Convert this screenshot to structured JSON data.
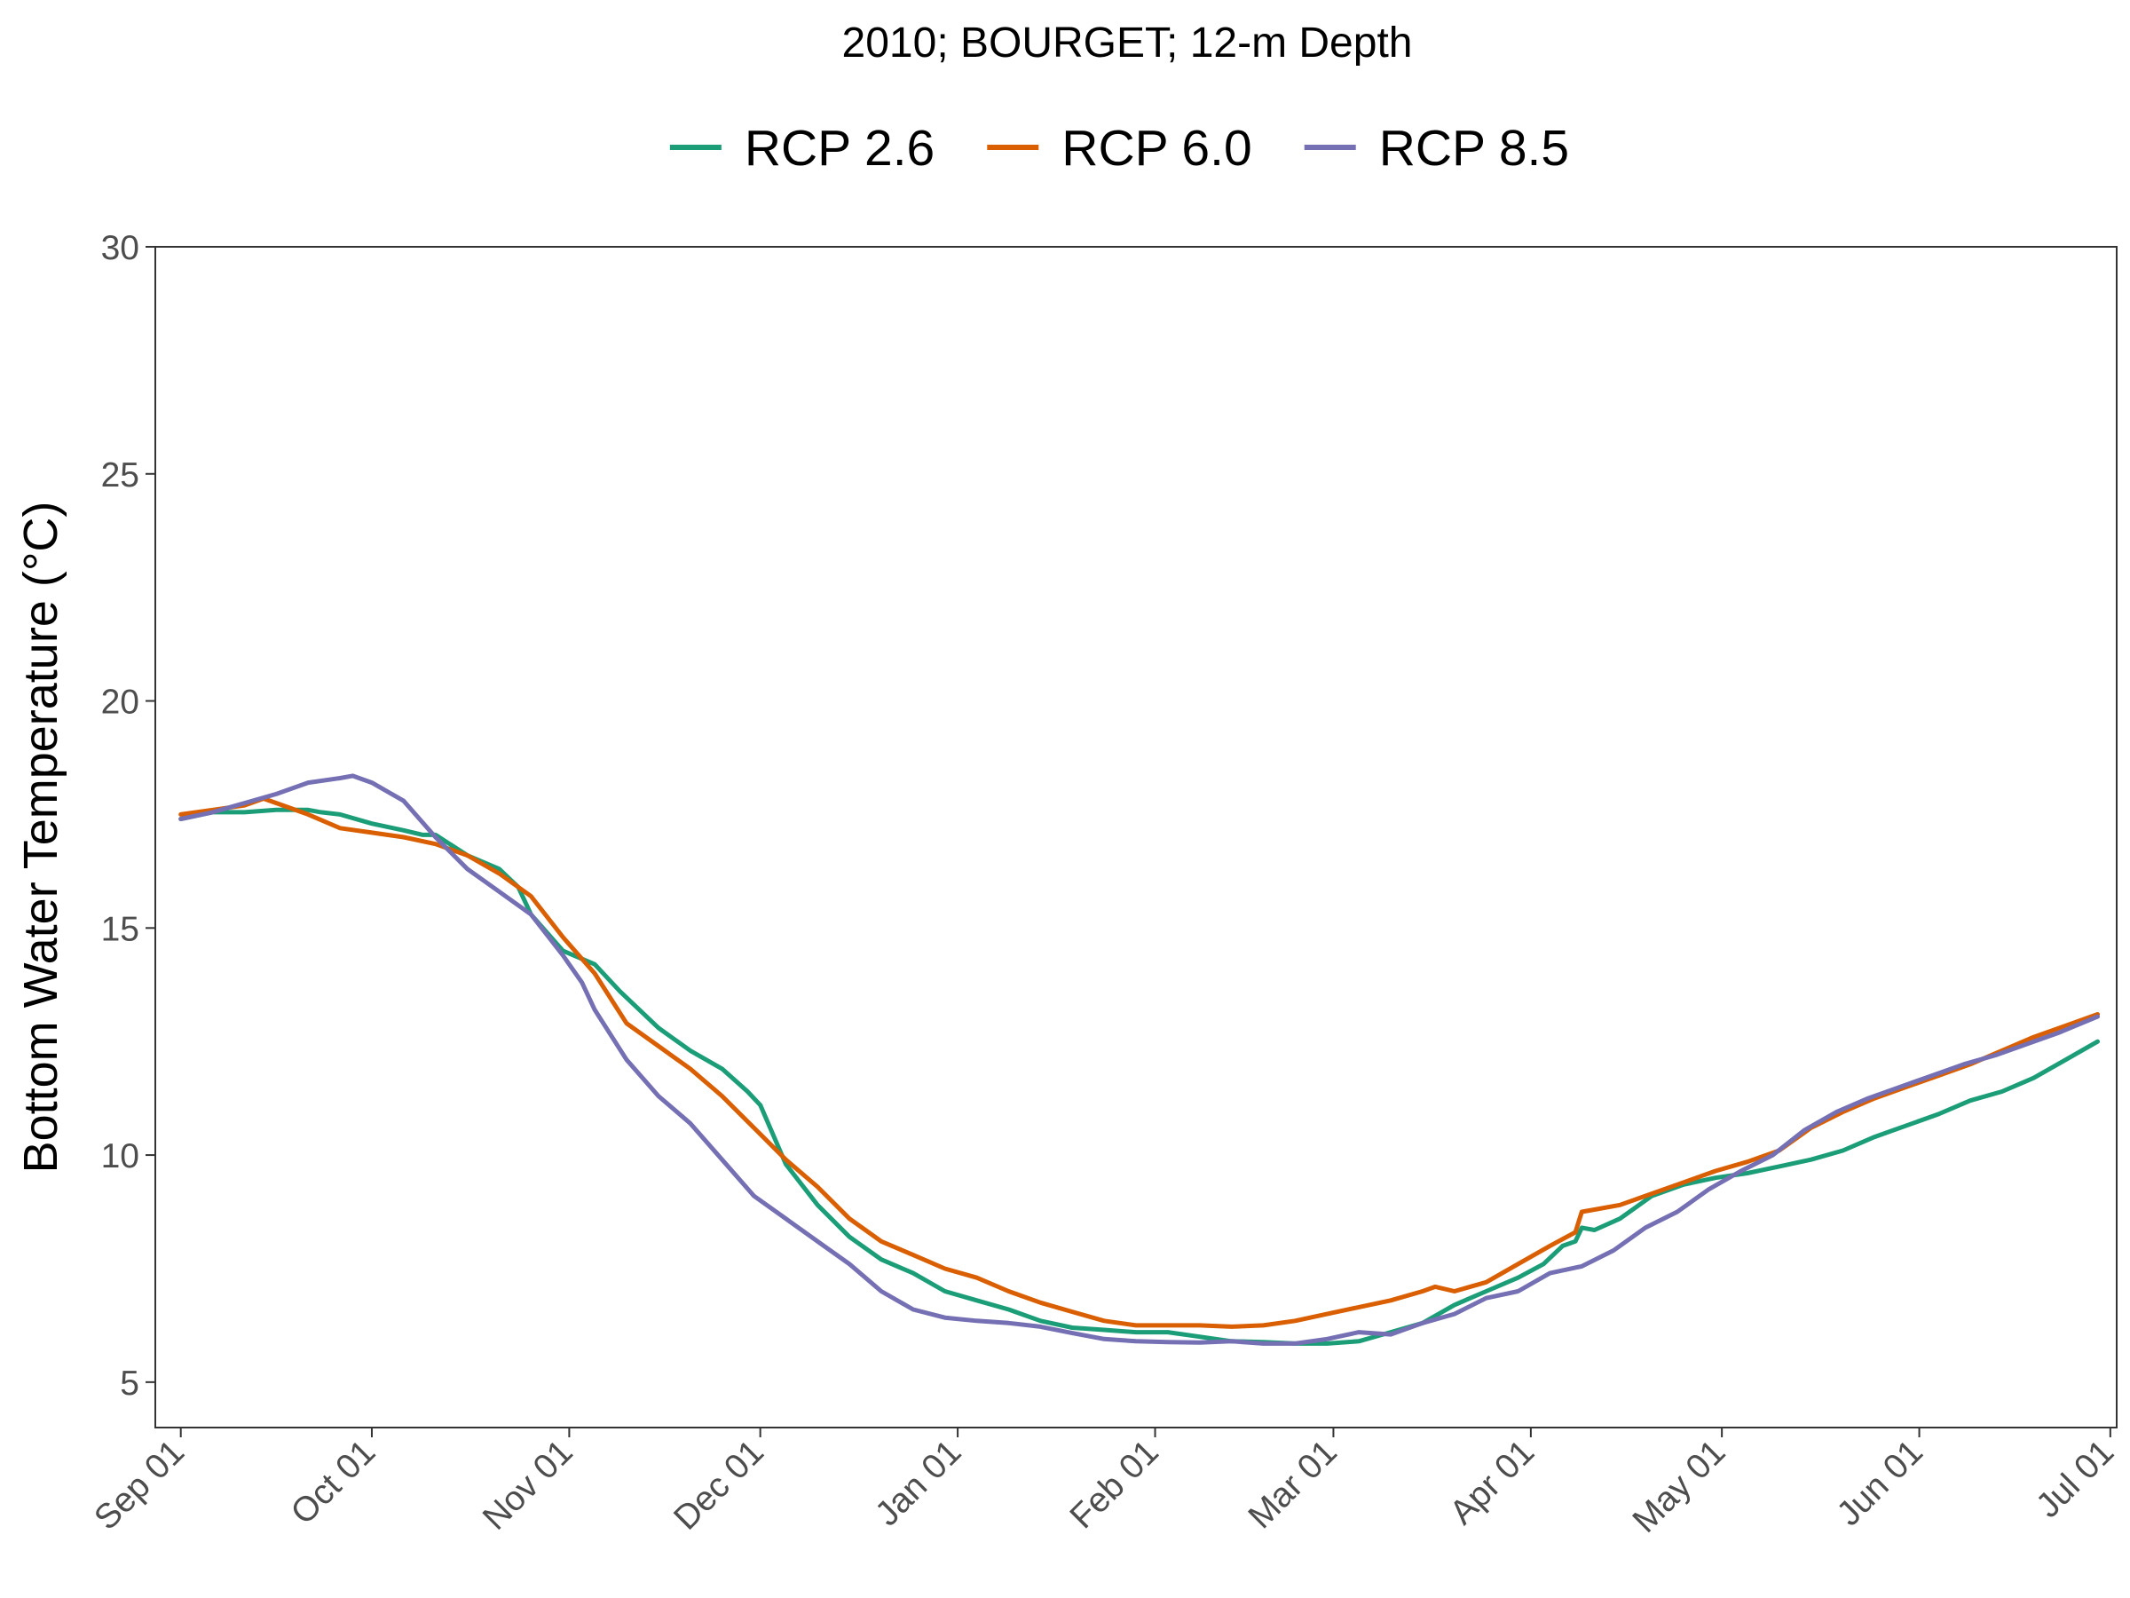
{
  "chart_data": {
    "type": "line",
    "title": "2010; BOURGET; 12-m Depth",
    "xlabel": "",
    "ylabel": "Bottom Water Temperature (°C)",
    "ylim": [
      4,
      30
    ],
    "yticks": [
      5,
      10,
      15,
      20,
      25,
      30
    ],
    "xlim": [
      "2010-08-28",
      "2011-07-02"
    ],
    "xticks": [
      "2010-09-01",
      "2010-10-01",
      "2010-11-01",
      "2010-12-01",
      "2011-01-01",
      "2011-02-01",
      "2011-03-01",
      "2011-04-01",
      "2011-05-01",
      "2011-06-01",
      "2011-07-01"
    ],
    "xtick_labels": [
      "Sep 01",
      "Oct 01",
      "Nov 01",
      "Dec 01",
      "Jan 01",
      "Feb 01",
      "Mar 01",
      "Apr 01",
      "May 01",
      "Jun 01",
      "Jul 01"
    ],
    "grid": false,
    "legend_position": "top",
    "series": [
      {
        "name": "RCP 2.6",
        "color": "#1b9e77",
        "x": [
          "2010-09-01",
          "2010-09-06",
          "2010-09-11",
          "2010-09-16",
          "2010-09-21",
          "2010-09-23",
          "2010-09-26",
          "2010-10-01",
          "2010-10-06",
          "2010-10-09",
          "2010-10-11",
          "2010-10-16",
          "2010-10-21",
          "2010-10-24",
          "2010-10-26",
          "2010-10-31",
          "2010-11-05",
          "2010-11-09",
          "2010-11-15",
          "2010-11-20",
          "2010-11-25",
          "2010-11-29",
          "2010-12-01",
          "2010-12-05",
          "2010-12-10",
          "2010-12-15",
          "2010-12-20",
          "2010-12-25",
          "2010-12-30",
          "2011-01-04",
          "2011-01-09",
          "2011-01-14",
          "2011-01-19",
          "2011-01-24",
          "2011-01-29",
          "2011-02-03",
          "2011-02-08",
          "2011-02-13",
          "2011-02-18",
          "2011-02-23",
          "2011-02-28",
          "2011-03-05",
          "2011-03-10",
          "2011-03-15",
          "2011-03-20",
          "2011-03-25",
          "2011-03-30",
          "2011-04-03",
          "2011-04-06",
          "2011-04-08",
          "2011-04-09",
          "2011-04-11",
          "2011-04-15",
          "2011-04-20",
          "2011-04-25",
          "2011-04-30",
          "2011-05-05",
          "2011-05-10",
          "2011-05-15",
          "2011-05-20",
          "2011-05-25",
          "2011-05-30",
          "2011-06-04",
          "2011-06-09",
          "2011-06-14",
          "2011-06-19",
          "2011-06-24",
          "2011-06-29"
        ],
        "y": [
          17.4,
          17.55,
          17.55,
          17.6,
          17.6,
          17.55,
          17.5,
          17.3,
          17.15,
          17.05,
          17.05,
          16.6,
          16.3,
          15.9,
          15.3,
          14.5,
          14.2,
          13.6,
          12.8,
          12.3,
          11.9,
          11.4,
          11.1,
          9.8,
          8.9,
          8.2,
          7.7,
          7.4,
          7.0,
          6.8,
          6.6,
          6.35,
          6.2,
          6.15,
          6.1,
          6.1,
          6.0,
          5.9,
          5.88,
          5.85,
          5.85,
          5.9,
          6.1,
          6.3,
          6.7,
          7.0,
          7.3,
          7.6,
          8.0,
          8.1,
          8.4,
          8.35,
          8.6,
          9.1,
          9.35,
          9.5,
          9.6,
          9.75,
          9.9,
          10.1,
          10.4,
          10.65,
          10.9,
          11.2,
          11.4,
          11.7,
          12.1,
          12.5
        ]
      },
      {
        "name": "RCP 6.0",
        "color": "#d95f02",
        "x": [
          "2010-09-01",
          "2010-09-06",
          "2010-09-11",
          "2010-09-14",
          "2010-09-21",
          "2010-09-26",
          "2010-10-01",
          "2010-10-06",
          "2010-10-11",
          "2010-10-16",
          "2010-10-21",
          "2010-10-26",
          "2010-10-31",
          "2010-11-05",
          "2010-11-10",
          "2010-11-15",
          "2010-11-20",
          "2010-11-25",
          "2010-11-30",
          "2010-12-05",
          "2010-12-10",
          "2010-12-15",
          "2010-12-20",
          "2010-12-25",
          "2010-12-30",
          "2011-01-04",
          "2011-01-09",
          "2011-01-14",
          "2011-01-19",
          "2011-01-24",
          "2011-01-29",
          "2011-02-03",
          "2011-02-08",
          "2011-02-13",
          "2011-02-18",
          "2011-02-23",
          "2011-02-28",
          "2011-03-05",
          "2011-03-10",
          "2011-03-15",
          "2011-03-17",
          "2011-03-20",
          "2011-03-25",
          "2011-03-30",
          "2011-04-04",
          "2011-04-08",
          "2011-04-09",
          "2011-04-11",
          "2011-04-15",
          "2011-04-19",
          "2011-04-25",
          "2011-04-30",
          "2011-05-05",
          "2011-05-10",
          "2011-05-15",
          "2011-05-20",
          "2011-05-25",
          "2011-05-30",
          "2011-06-04",
          "2011-06-09",
          "2011-06-14",
          "2011-06-19",
          "2011-06-24",
          "2011-06-29"
        ],
        "y": [
          17.5,
          17.6,
          17.7,
          17.85,
          17.5,
          17.2,
          17.1,
          17.0,
          16.85,
          16.6,
          16.2,
          15.7,
          14.8,
          14.0,
          12.9,
          12.4,
          11.9,
          11.3,
          10.6,
          9.9,
          9.3,
          8.6,
          8.1,
          7.8,
          7.5,
          7.3,
          7.0,
          6.75,
          6.55,
          6.35,
          6.25,
          6.25,
          6.25,
          6.22,
          6.25,
          6.35,
          6.5,
          6.65,
          6.8,
          7.0,
          7.1,
          7.0,
          7.2,
          7.6,
          8.0,
          8.3,
          8.75,
          8.8,
          8.9,
          9.1,
          9.4,
          9.65,
          9.85,
          10.1,
          10.6,
          10.95,
          11.25,
          11.5,
          11.75,
          12.0,
          12.3,
          12.6,
          12.85,
          13.1
        ]
      },
      {
        "name": "RCP 8.5",
        "color": "#7570b3",
        "x": [
          "2010-09-01",
          "2010-09-06",
          "2010-09-11",
          "2010-09-16",
          "2010-09-21",
          "2010-09-26",
          "2010-09-28",
          "2010-10-01",
          "2010-10-06",
          "2010-10-11",
          "2010-10-16",
          "2010-10-21",
          "2010-10-26",
          "2010-10-31",
          "2010-11-03",
          "2010-11-05",
          "2010-11-10",
          "2010-11-15",
          "2010-11-20",
          "2010-11-25",
          "2010-11-30",
          "2010-12-05",
          "2010-12-10",
          "2010-12-15",
          "2010-12-20",
          "2010-12-25",
          "2010-12-30",
          "2011-01-04",
          "2011-01-09",
          "2011-01-14",
          "2011-01-19",
          "2011-01-24",
          "2011-01-29",
          "2011-02-03",
          "2011-02-08",
          "2011-02-13",
          "2011-02-18",
          "2011-02-23",
          "2011-02-28",
          "2011-03-05",
          "2011-03-10",
          "2011-03-15",
          "2011-03-20",
          "2011-03-25",
          "2011-03-30",
          "2011-04-04",
          "2011-04-09",
          "2011-04-14",
          "2011-04-19",
          "2011-04-24",
          "2011-04-29",
          "2011-05-04",
          "2011-05-09",
          "2011-05-14",
          "2011-05-19",
          "2011-05-24",
          "2011-05-29",
          "2011-06-03",
          "2011-06-08",
          "2011-06-13",
          "2011-06-18",
          "2011-06-23",
          "2011-06-29"
        ],
        "y": [
          17.4,
          17.55,
          17.75,
          17.95,
          18.2,
          18.3,
          18.35,
          18.2,
          17.8,
          17.0,
          16.3,
          15.8,
          15.3,
          14.4,
          13.8,
          13.2,
          12.1,
          11.3,
          10.7,
          9.9,
          9.1,
          8.6,
          8.1,
          7.6,
          7.0,
          6.6,
          6.42,
          6.35,
          6.3,
          6.22,
          6.08,
          5.95,
          5.9,
          5.88,
          5.87,
          5.9,
          5.85,
          5.85,
          5.95,
          6.1,
          6.05,
          6.3,
          6.5,
          6.85,
          7.0,
          7.4,
          7.55,
          7.9,
          8.4,
          8.75,
          9.25,
          9.65,
          10.0,
          10.55,
          10.95,
          11.25,
          11.5,
          11.75,
          12.0,
          12.2,
          12.45,
          12.7,
          13.05
        ]
      }
    ]
  }
}
